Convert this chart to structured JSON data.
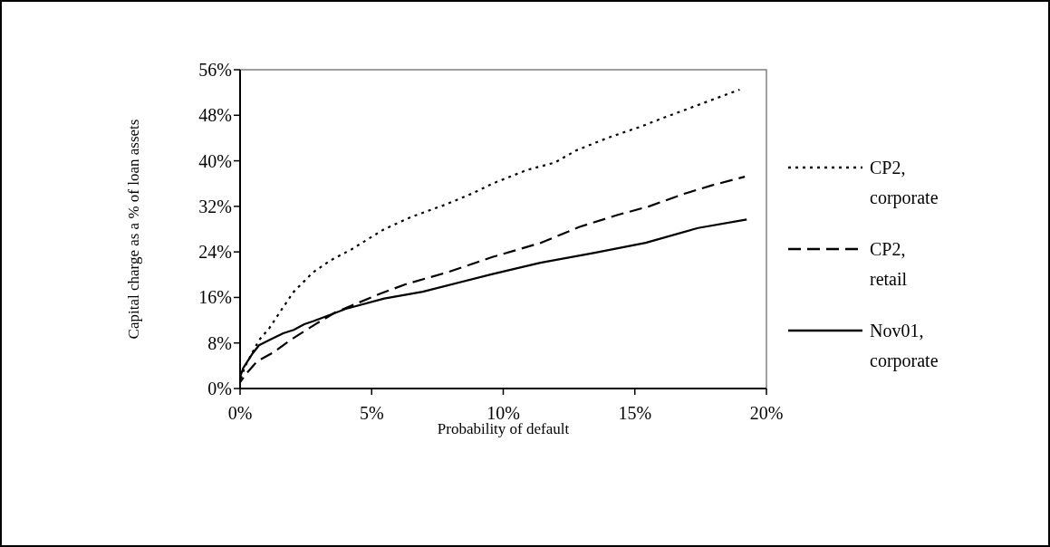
{
  "chart_data": {
    "type": "line",
    "xlabel": "Probability of default",
    "ylabel": "Capital charge as a % of loan assets",
    "xlim": [
      0,
      20
    ],
    "xticks": [
      {
        "value": 0,
        "label": "0%"
      },
      {
        "value": 5,
        "label": "5%"
      },
      {
        "value": 10,
        "label": "10%"
      },
      {
        "value": 15,
        "label": "15%"
      },
      {
        "value": 20,
        "label": "20%"
      }
    ],
    "ylim": [
      0,
      56
    ],
    "yticks": [
      {
        "value": 0,
        "label": "0%"
      },
      {
        "value": 8,
        "label": "8%"
      },
      {
        "value": 16,
        "label": "16%"
      },
      {
        "value": 24,
        "label": "24%"
      },
      {
        "value": 32,
        "label": "32%"
      },
      {
        "value": 40,
        "label": "40%"
      },
      {
        "value": 48,
        "label": "48%"
      },
      {
        "value": 56,
        "label": "56%"
      }
    ],
    "legend": "right",
    "grid": false,
    "series": [
      {
        "name": "CP2, corporate",
        "color": "#000000",
        "line_style": "dotted",
        "x": [
          0,
          0.19,
          0.72,
          1.11,
          1.64,
          2.04,
          2.77,
          3.43,
          4.22,
          4.95,
          5.48,
          6.54,
          7.8,
          8.79,
          9.59,
          10.91,
          11.97,
          12.76,
          13.95,
          15.28,
          15.94,
          17.4,
          18.98
        ],
        "values": [
          1.4,
          3.9,
          8.5,
          10.6,
          14.3,
          17,
          20.4,
          22.5,
          24.4,
          26.5,
          28,
          30.2,
          32.3,
          34.2,
          36,
          38.4,
          39.7,
          41.8,
          44,
          46.1,
          47.3,
          49.8,
          52.5
        ]
      },
      {
        "name": "CP2, retail",
        "color": "#000000",
        "line_style": "dashed",
        "x": [
          0,
          0.25,
          0.65,
          1.25,
          1.91,
          2.83,
          3.63,
          5.35,
          6.28,
          7.87,
          9.59,
          11.44,
          12.9,
          14.35,
          15.54,
          16.87,
          17.93,
          19.18
        ],
        "values": [
          1.1,
          2.7,
          4.8,
          6.3,
          8.5,
          11.2,
          13.4,
          16.7,
          18.3,
          20.4,
          23.1,
          25.6,
          28.4,
          30.5,
          32,
          34.2,
          35.7,
          37.2
        ]
      },
      {
        "name": "Nov01, corporate",
        "color": "#000000",
        "line_style": "solid",
        "x": [
          0,
          0.12,
          0.45,
          0.72,
          1.11,
          1.64,
          2.04,
          2.44,
          2.77,
          3.23,
          4.02,
          5.48,
          6.94,
          9.59,
          11.41,
          13.43,
          15.41,
          17.4,
          19.25
        ],
        "values": [
          2,
          3.6,
          6,
          7.6,
          8.5,
          9.7,
          10.3,
          11.3,
          11.8,
          12.6,
          14,
          15.8,
          17,
          20.1,
          22.1,
          23.8,
          25.6,
          28.2,
          29.7
        ]
      }
    ]
  }
}
